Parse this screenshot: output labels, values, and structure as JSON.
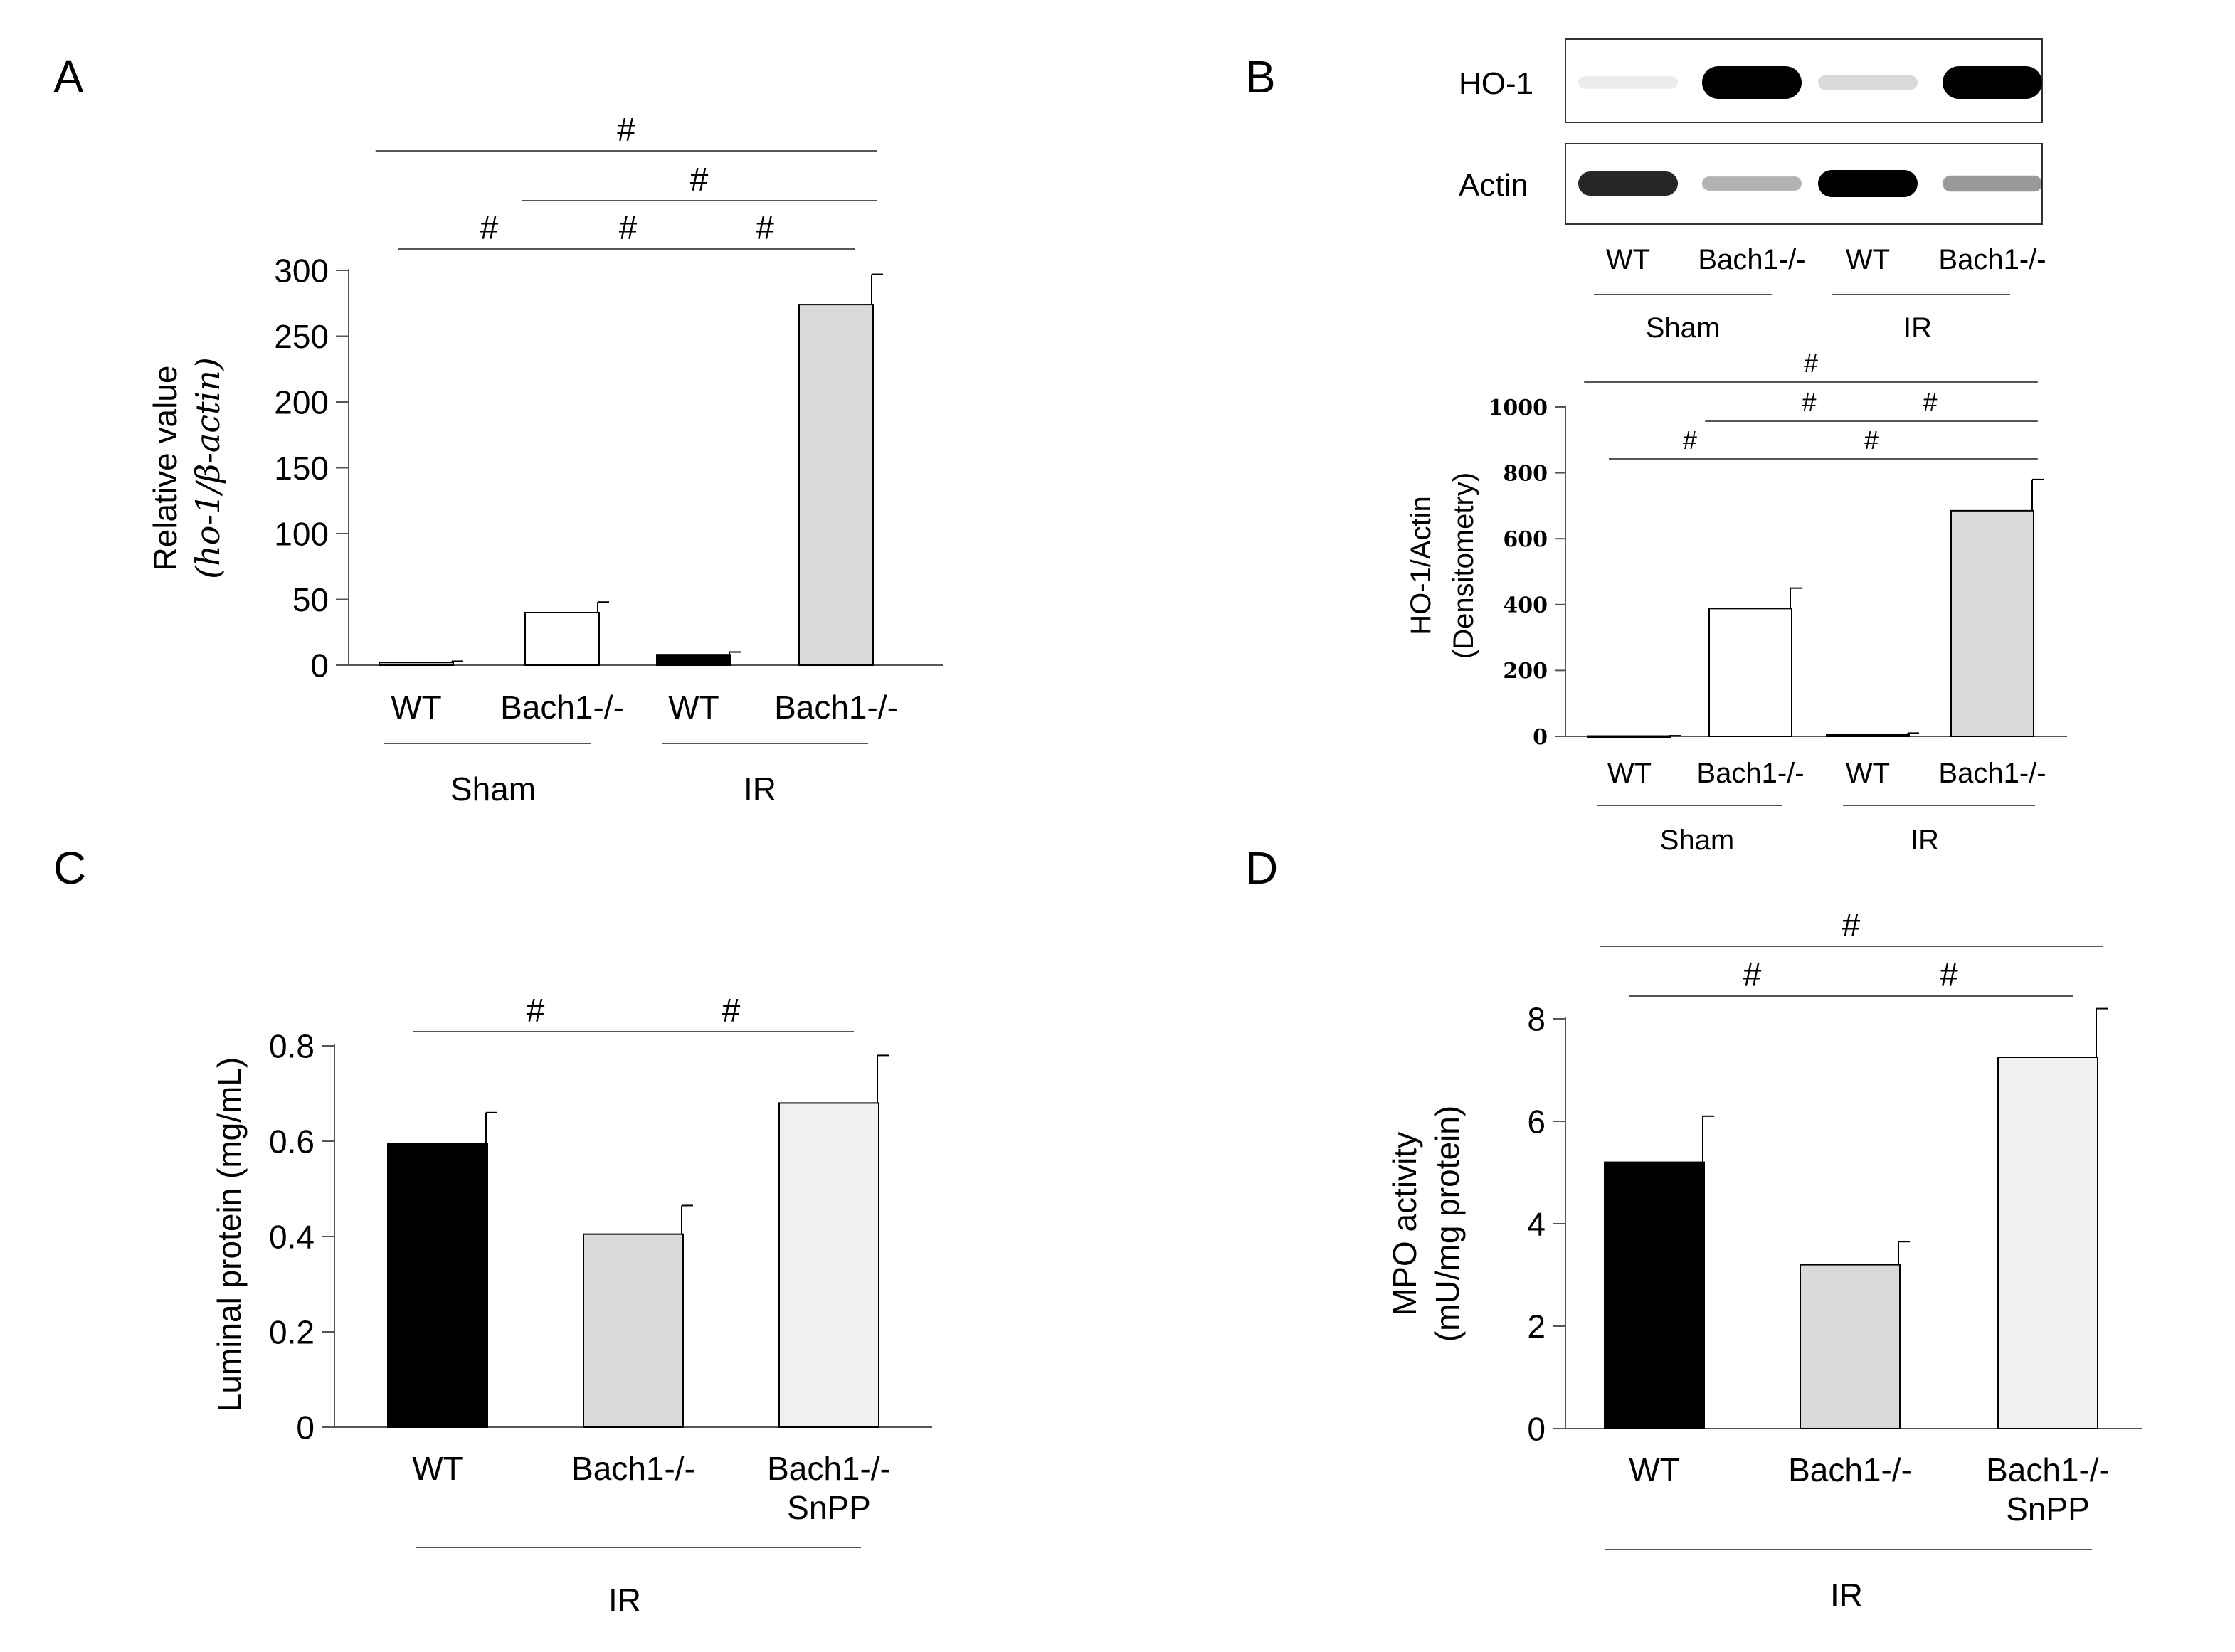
{
  "panels": {
    "A": "A",
    "B": "B",
    "C": "C",
    "D": "D"
  },
  "sig": "#",
  "colors": {
    "black": "#000000",
    "white": "#ffffff",
    "gray": "#d9d9d9",
    "light": "#f0f0f0",
    "axis": "#555555"
  },
  "blot": {
    "labels": [
      "HO-1",
      "Actin"
    ],
    "lanes": [
      "WT",
      "Bach1-/-",
      "WT",
      "Bach1-/-"
    ],
    "groups": [
      "Sham",
      "IR"
    ],
    "ho1_intensity": [
      0.05,
      1.0,
      0.15,
      1.0
    ],
    "actin_intensity": [
      0.85,
      0.3,
      1.0,
      0.4
    ]
  },
  "chart_data": [
    {
      "panel": "A",
      "type": "bar",
      "ylabel_line1": "Relative value",
      "ylabel_line2": "(ho-1/β-actin)",
      "categories": [
        "WT",
        "Bach1-/-",
        "WT",
        "Bach1-/-"
      ],
      "groups": [
        "Sham",
        "IR"
      ],
      "values": [
        2,
        40,
        8,
        274
      ],
      "errors": [
        1,
        8,
        2,
        23
      ],
      "fills": [
        "white",
        "white",
        "black",
        "gray"
      ],
      "ylim": [
        0,
        300
      ],
      "yticks": [
        "0",
        "50",
        "100",
        "150",
        "200",
        "250",
        "300"
      ],
      "significance": [
        {
          "from": 0,
          "to": 1,
          "label": "#"
        },
        {
          "from": 1,
          "to": 2,
          "label": "#"
        },
        {
          "from": 2,
          "to": 3,
          "label": "#"
        },
        {
          "from": 1,
          "to": 3,
          "label": "#"
        },
        {
          "from": 0,
          "to": 3,
          "label": "#"
        }
      ]
    },
    {
      "panel": "B",
      "type": "bar",
      "ylabel_line1": "HO-1/Actin",
      "ylabel_line2": "(Densitometry)",
      "categories": [
        "WT",
        "Bach1-/-",
        "WT",
        "Bach1-/-"
      ],
      "groups": [
        "Sham",
        "IR"
      ],
      "values": [
        1,
        388,
        6,
        685
      ],
      "errors": [
        1,
        62,
        4,
        95
      ],
      "fills": [
        "white",
        "white",
        "black",
        "gray"
      ],
      "ylim": [
        0,
        1000
      ],
      "yticks": [
        "0",
        "200",
        "400",
        "600",
        "800",
        "1000"
      ],
      "significance": [
        {
          "from": 0,
          "to": 1,
          "label": "#"
        },
        {
          "from": 1,
          "to": 3,
          "label": "#"
        },
        {
          "from": 1,
          "to": 2,
          "label": "#"
        },
        {
          "from": 2,
          "to": 3,
          "label": "#"
        },
        {
          "from": 0,
          "to": 3,
          "label": "#"
        }
      ]
    },
    {
      "panel": "C",
      "type": "bar",
      "ylabel_line1": "Luminal protein (mg/mL)",
      "categories": [
        "WT",
        "Bach1-/-",
        "Bach1-/-"
      ],
      "category_sub": [
        "",
        "",
        "SnPP"
      ],
      "group": "IR",
      "values": [
        0.595,
        0.405,
        0.68
      ],
      "errors": [
        0.065,
        0.06,
        0.1
      ],
      "fills": [
        "black",
        "gray",
        "light"
      ],
      "ylim": [
        0,
        0.8
      ],
      "yticks": [
        "0",
        "0.2",
        "0.4",
        "0.6",
        "0.8"
      ],
      "significance": [
        {
          "from": 0,
          "to": 1,
          "label": "#"
        },
        {
          "from": 1,
          "to": 2,
          "label": "#"
        }
      ]
    },
    {
      "panel": "D",
      "type": "bar",
      "ylabel_line1": "MPO activity",
      "ylabel_line2": "(mU/mg protein)",
      "categories": [
        "WT",
        "Bach1-/-",
        "Bach1-/-"
      ],
      "category_sub": [
        "",
        "",
        "SnPP"
      ],
      "group": "IR",
      "values": [
        5.2,
        3.2,
        7.25
      ],
      "errors": [
        0.9,
        0.45,
        0.95
      ],
      "fills": [
        "black",
        "gray",
        "light"
      ],
      "ylim": [
        0,
        8
      ],
      "yticks": [
        "0",
        "2",
        "4",
        "6",
        "8"
      ],
      "significance": [
        {
          "from": 0,
          "to": 1,
          "label": "#"
        },
        {
          "from": 1,
          "to": 2,
          "label": "#"
        },
        {
          "from": 0,
          "to": 2,
          "label": "#"
        }
      ]
    }
  ]
}
